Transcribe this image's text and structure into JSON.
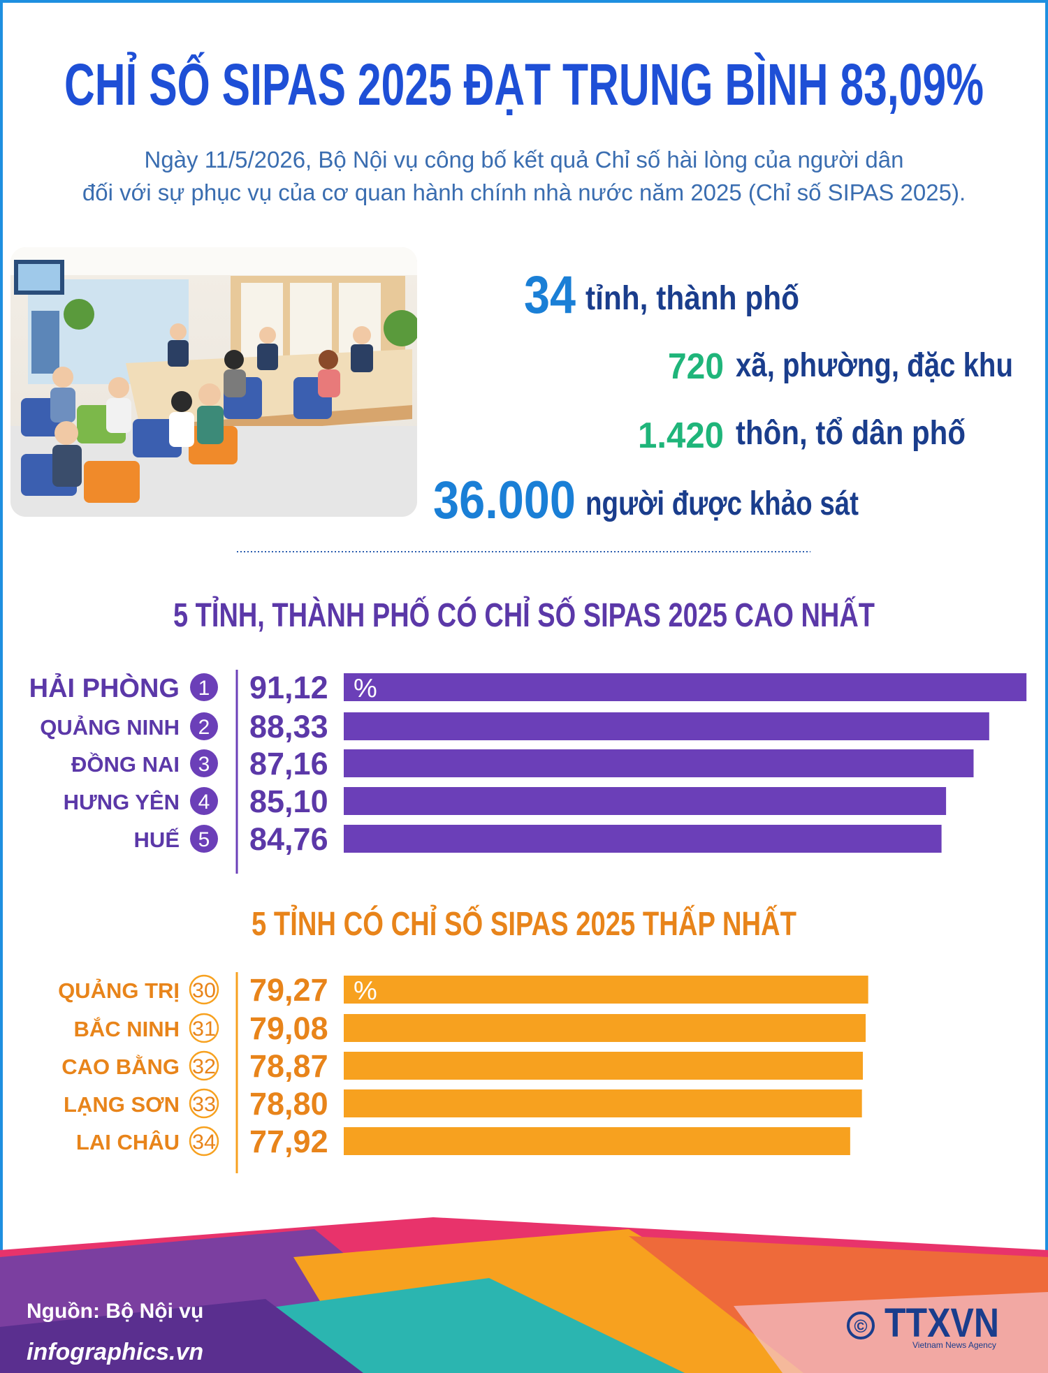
{
  "header": {
    "title": "CHỈ SỐ SIPAS 2025 ĐẠT TRUNG BÌNH 83,09%",
    "subtitle": [
      "Ngày 11/5/2026, Bộ Nội vụ công bố kết quả Chỉ số hài lòng của người dân",
      "đối với sự phục vụ của cơ quan hành chính nhà nước năm 2025 (Chỉ số SIPAS 2025)."
    ]
  },
  "stats": [
    {
      "number": "34",
      "label": "tỉnh, thành phố"
    },
    {
      "number": "720",
      "label": "xã, phường, đặc khu"
    },
    {
      "number": "1.420",
      "label": "thôn, tổ dân phố"
    },
    {
      "number": "36.000",
      "label": "người được khảo sát"
    }
  ],
  "chart_data": [
    {
      "type": "bar",
      "title": "5 TỈNH, THÀNH PHỐ CÓ CHỈ SỐ SIPAS 2025 CAO NHẤT",
      "categories": [
        "HẢI PHÒNG",
        "QUẢNG NINH",
        "ĐỒNG NAI",
        "HƯNG YÊN",
        "HUẾ"
      ],
      "ranks": [
        "1",
        "2",
        "3",
        "4",
        "5"
      ],
      "values": [
        91.12,
        88.33,
        87.16,
        85.1,
        84.76
      ],
      "value_labels": [
        "91,12",
        "88,33",
        "87,16",
        "85,10",
        "84,76"
      ],
      "unit": "%",
      "color": "#6b3fb8",
      "xlim": [
        40,
        92
      ]
    },
    {
      "type": "bar",
      "title": "5 TỈNH CÓ CHỈ SỐ SIPAS 2025 THẤP NHẤT",
      "categories": [
        "QUẢNG TRỊ",
        "BẮC NINH",
        "CAO BẰNG",
        "LẠNG SƠN",
        "LAI CHÂU"
      ],
      "ranks": [
        "30",
        "31",
        "32",
        "33",
        "34"
      ],
      "values": [
        79.27,
        79.08,
        78.87,
        78.8,
        77.92
      ],
      "value_labels": [
        "79,27",
        "79,08",
        "78,87",
        "78,80",
        "77,92"
      ],
      "unit": "%",
      "color": "#f7a11f",
      "xlim": [
        40,
        92
      ]
    }
  ],
  "footer": {
    "source": "Nguồn: Bộ Nội vụ",
    "website": "infographics.vn",
    "copyright": "©",
    "logo": "TTXVN",
    "logo_subtitle": "Vietnam News Agency"
  }
}
